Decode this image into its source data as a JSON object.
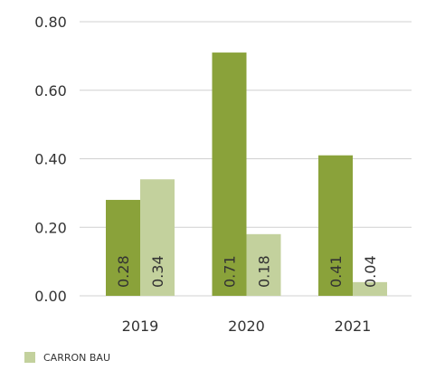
{
  "chart_data": {
    "type": "bar",
    "categories": [
      "2019",
      "2020",
      "2021"
    ],
    "series": [
      {
        "color": "#8aa23a",
        "values": [
          0.28,
          0.71,
          0.41
        ]
      },
      {
        "name": "CARRON BAU",
        "color": "#c3d19d",
        "values": [
          0.34,
          0.18,
          0.04
        ]
      }
    ],
    "ylim": [
      0,
      0.8
    ],
    "yticks": [
      {
        "value": 0,
        "label": "0.00"
      },
      {
        "value": 0.2,
        "label": "0.20"
      },
      {
        "value": 0.4,
        "label": "0.40"
      },
      {
        "value": 0.6,
        "label": "0.60"
      },
      {
        "value": 0.8,
        "label": "0.80"
      }
    ],
    "grid": true
  }
}
